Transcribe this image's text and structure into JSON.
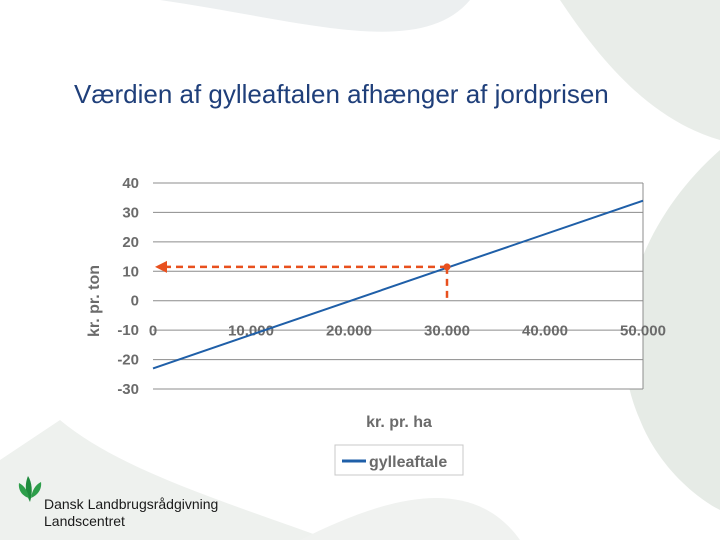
{
  "slide": {
    "title": "Værdien af gylleaftalen afhænger af jordprisen",
    "organization_line1": "Dansk Landbrugsrådgivning",
    "organization_line2": "Landscentret"
  },
  "colors": {
    "title": "#1f3f7a",
    "series_line": "#1f5fa8",
    "annotation": "#e8501e",
    "grid": "#8c8c8c",
    "background_leaf": "#e9ede9",
    "logo": "#1e8a3c"
  },
  "chart_data": {
    "type": "line",
    "xlabel": "kr. pr. ha",
    "ylabel": "kr. pr. ton",
    "xlim": [
      0,
      50000
    ],
    "ylim": [
      -30,
      40
    ],
    "x_ticks": [
      "0",
      "10.000",
      "20.000",
      "30.000",
      "40.000",
      "50.000"
    ],
    "y_ticks": [
      "40",
      "30",
      "20",
      "10",
      "0",
      "-10",
      "-20",
      "-30"
    ],
    "grid": true,
    "legend": "bottom",
    "series": [
      {
        "name": "gylleaftale",
        "x": [
          0,
          50000
        ],
        "y": [
          -23,
          34
        ]
      }
    ],
    "annotation": {
      "x": 30000,
      "y": 11.5
    }
  }
}
